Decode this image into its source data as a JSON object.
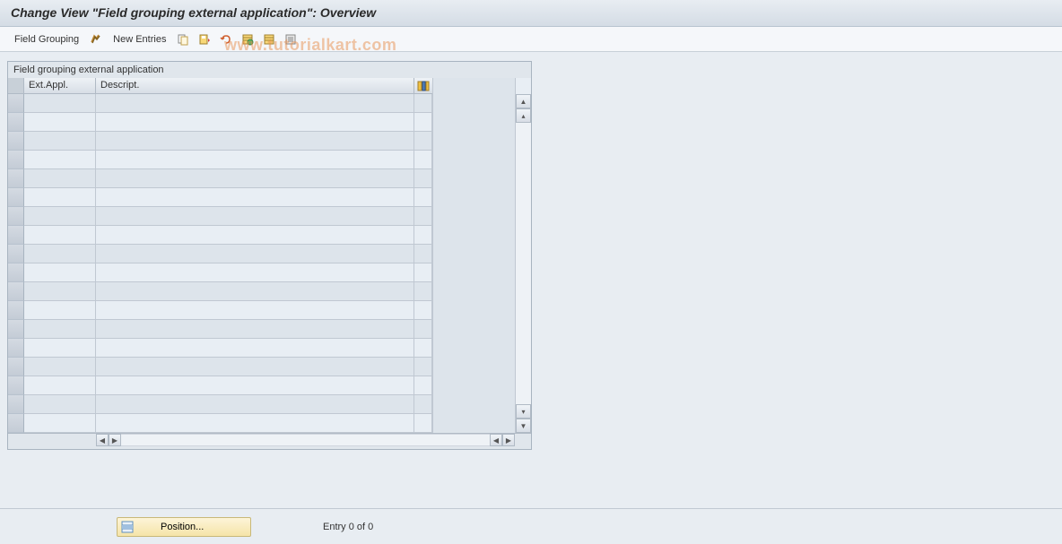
{
  "title": "Change View \"Field grouping external application\": Overview",
  "menu": {
    "field_grouping": "Field Grouping",
    "new_entries": "New Entries"
  },
  "watermark": "www.tutorialkart.com",
  "panel": {
    "title": "Field grouping external application",
    "columns": {
      "col1": "Ext.Appl.",
      "col2": "Descript."
    },
    "row_count": 18
  },
  "footer": {
    "position_label": "Position...",
    "entry_text": "Entry 0 of 0"
  },
  "colors": {
    "title_bg_top": "#e8edf2",
    "title_bg_bottom": "#d4dce5",
    "panel_bg": "#e0e6ec",
    "row_even": "#e8eef4",
    "row_odd": "#dde4eb",
    "border": "#a8b4c0",
    "position_btn_top": "#fdf4d8",
    "position_btn_bottom": "#f5e4a8"
  }
}
